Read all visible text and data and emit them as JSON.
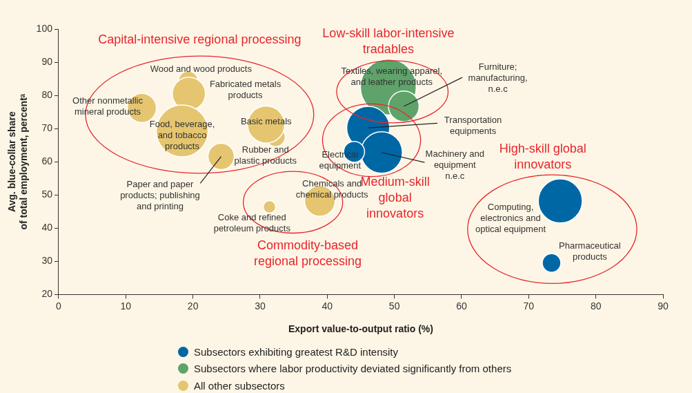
{
  "chart_data": {
    "type": "bubble",
    "xlabel": "Export value-to-output ratio (%)",
    "ylabel": "Avg. blue-collar share\nof total employment, percentᵃ",
    "xlim": [
      0,
      90
    ],
    "xticks": [
      0,
      10,
      20,
      30,
      40,
      50,
      60,
      70,
      80,
      90
    ],
    "ylim": [
      20,
      100
    ],
    "yticks": [
      20,
      30,
      40,
      50,
      60,
      70,
      80,
      90,
      100
    ],
    "legend": "bottom",
    "series": [
      {
        "name": "Subsectors exhibiting greatest R&D intensity",
        "color": "#0067a5",
        "x": [
          46.1,
          48.1,
          44.0,
          74.7,
          73.4
        ],
        "values": [
          70.2,
          62.8,
          63.0,
          48.2,
          29.5
        ],
        "sizes": [
          0.59,
          0.55,
          0.14,
          0.62,
          0.11
        ]
      },
      {
        "name": "Subsectors where labor productivity deviated significantly from others",
        "color": "#5fa36a",
        "x": [
          49.1,
          51.4
        ],
        "values": [
          82.5,
          76.7
        ],
        "sizes": [
          1,
          0.3
        ]
      },
      {
        "name": "All other subsectors",
        "color": "#e5c56f",
        "x": [
          19.3,
          19.4,
          12.4,
          18.4,
          32.3,
          30.9,
          24.2,
          31.4,
          38.9
        ],
        "values": [
          84.4,
          80.5,
          76.2,
          69.3,
          67.5,
          71.2,
          61.6,
          46.4,
          48.2
        ],
        "sizes": [
          0.12,
          0.35,
          0.27,
          0.86,
          0.12,
          0.44,
          0.22,
          0.05,
          0.3
        ]
      }
    ],
    "annotations": [
      "Capital-intensive regional processing",
      "Low-skill labor-intensive\ntradables",
      "Medium-skill\nglobal\ninnovators",
      "High-skill global\ninnovators",
      "Commodity-based\nregional processing",
      {
        "text": "Wood and wood products",
        "x": 19.3,
        "y": 84.4
      },
      {
        "text": "Fabricated metals\nproducts",
        "x": 19.4,
        "y": 80.5
      },
      {
        "text": "Other nonmetallic\nmineral products",
        "x": 12.4,
        "y": 76.2
      },
      {
        "text": "Food, beverage,\nand tobacco\nproducts",
        "x": 18.4,
        "y": 69.3
      },
      {
        "text": "Basic metals",
        "x": 30.9,
        "y": 71.2
      },
      {
        "text": "Rubber and\nplastic products",
        "x": 32.3,
        "y": 67.5
      },
      {
        "text": "Paper and paper\nproducts; publishing\nand printing",
        "x": 24.2,
        "y": 61.6
      },
      {
        "text": "Coke and refined\npetroleum products",
        "x": 31.4,
        "y": 46.4
      },
      {
        "text": "Chemicals and\nchemical products",
        "x": 38.9,
        "y": 48.2
      },
      {
        "text": "Textiles, wearing apparel,\nand leather products",
        "x": 49.1,
        "y": 82.5
      },
      {
        "text": "Furniture;\nmanufacturing,\nn.e.c",
        "x": 51.4,
        "y": 76.7
      },
      {
        "text": "Transportation\nequipments",
        "x": 46.1,
        "y": 70.2
      },
      {
        "text": "Machinery and\nequipment\nn.e.c",
        "x": 48.1,
        "y": 62.8
      },
      {
        "text": "Electrical\nequipment",
        "x": 44.0,
        "y": 63.0
      },
      {
        "text": "Computing,\nelectronics and\noptical equipment",
        "x": 74.7,
        "y": 48.2
      },
      {
        "text": "Pharmaceutical\nproducts",
        "x": 73.4,
        "y": 29.5
      }
    ]
  }
}
